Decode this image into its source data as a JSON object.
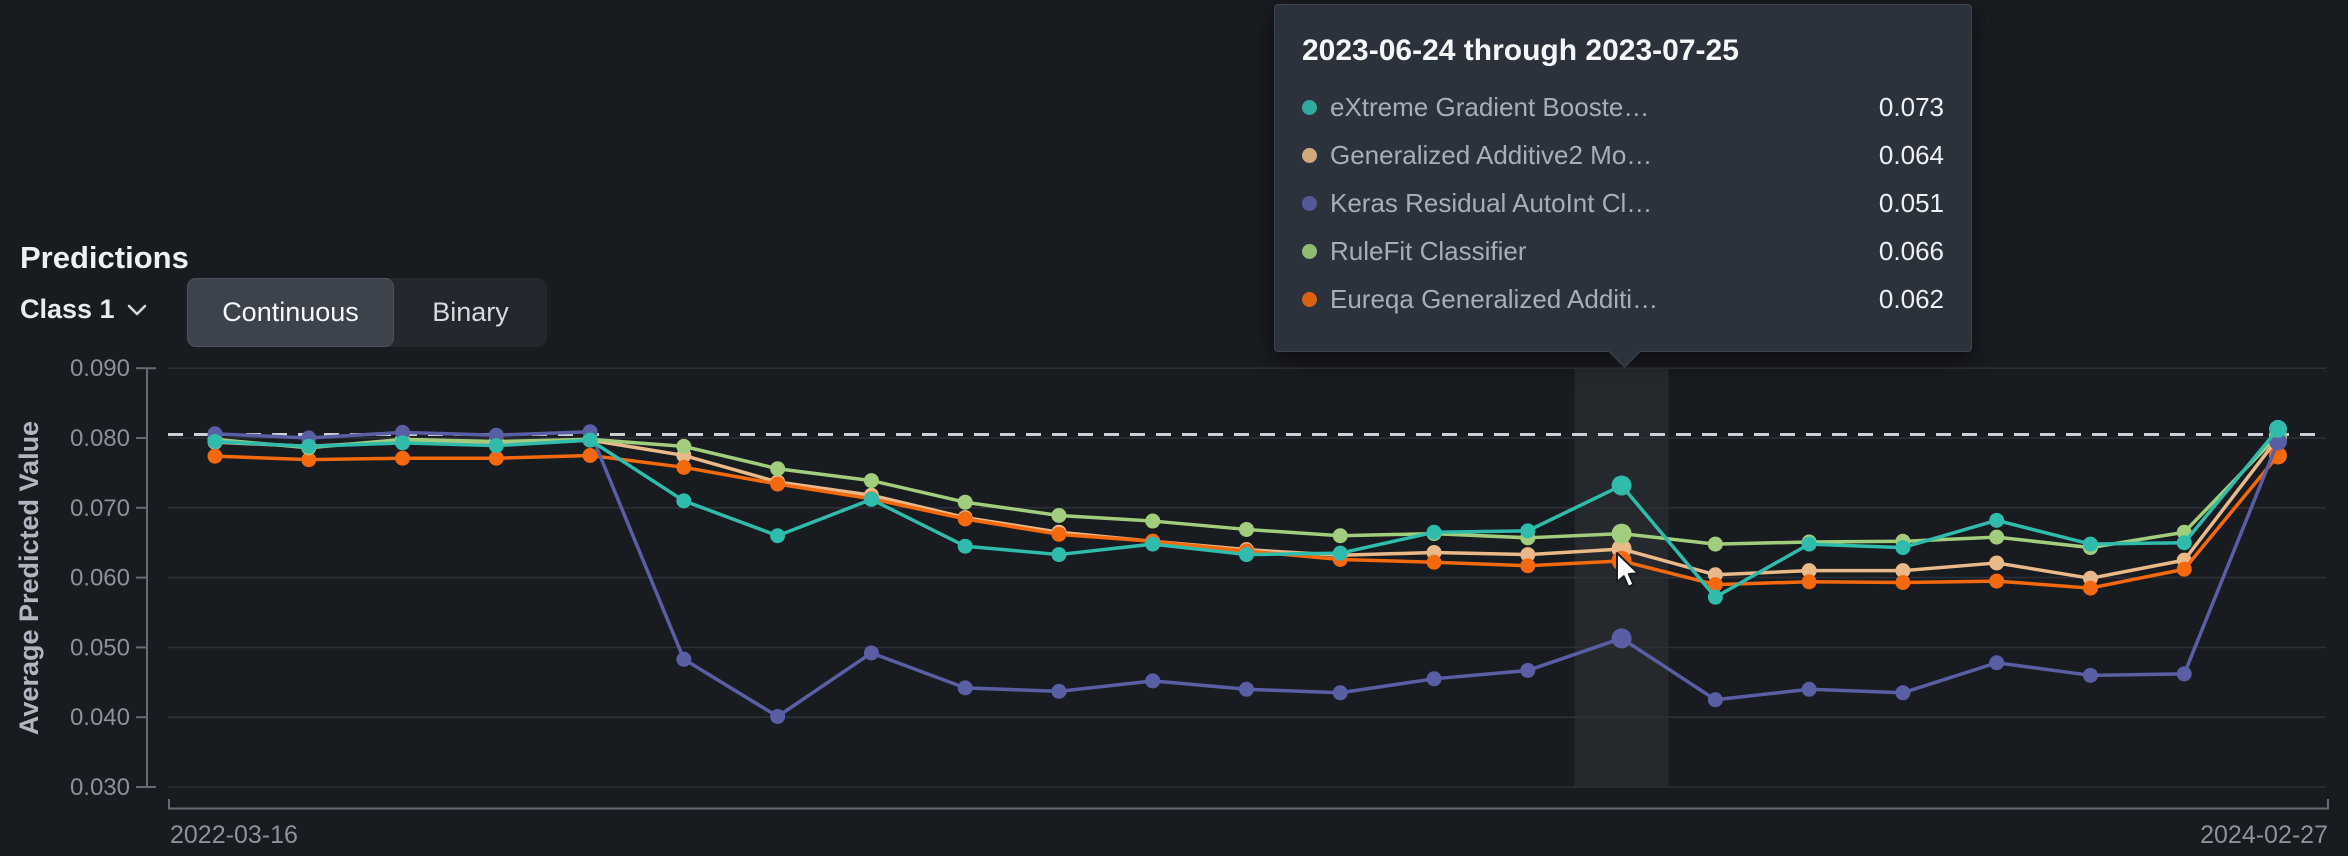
{
  "page": {
    "background": "#181b20"
  },
  "header": {
    "title": "Predictions",
    "class_selector": {
      "label": "Class 1",
      "icon": "chevron-down"
    },
    "toggle": {
      "options": [
        "Continuous",
        "Binary"
      ],
      "selected": "Continuous"
    }
  },
  "tooltip": {
    "title": "2023-06-24 through 2023-07-25",
    "rows": [
      {
        "name": "eXtreme Gradient Booste…",
        "value": "0.073",
        "color": "#2fbcac"
      },
      {
        "name": "Generalized Additive2 Mo…",
        "value": "0.064",
        "color": "#e9b989"
      },
      {
        "name": "Keras Residual AutoInt Cl…",
        "value": "0.051",
        "color": "#5a5fa5"
      },
      {
        "name": "RuleFit Classifier",
        "value": "0.066",
        "color": "#a2cd7d"
      },
      {
        "name": "Eureqa Generalized Additi…",
        "value": "0.062",
        "color": "#f4690e"
      }
    ]
  },
  "chart_data": {
    "type": "line",
    "title": "",
    "xlabel": "",
    "ylabel": "Average Predicted Value",
    "x_start_label": "2022-03-16",
    "x_end_label": "2024-02-27",
    "y_ticks": [
      "0.090",
      "0.080",
      "0.070",
      "0.060",
      "0.050",
      "0.040",
      "0.030"
    ],
    "ylim": [
      0.03,
      0.09
    ],
    "grid": true,
    "threshold_value": 0.0805,
    "hover_bin_index": 15,
    "hover_bin_label": "2023-06-24 through 2023-07-25",
    "bins": 23,
    "series": [
      {
        "name": "eXtreme Gradient Booste…",
        "color": "#2fbcac",
        "values": [
          0.0795,
          0.0788,
          0.0793,
          0.0789,
          0.0797,
          0.071,
          0.066,
          0.0712,
          0.0645,
          0.0633,
          0.0648,
          0.0633,
          0.0635,
          0.0665,
          0.0667,
          0.0732,
          0.0572,
          0.0648,
          0.0643,
          0.0682,
          0.0648,
          0.065,
          0.0813
        ]
      },
      {
        "name": "Generalized Additive2 Mo…",
        "color": "#e9b989",
        "values": [
          0.0794,
          0.0788,
          0.0795,
          0.079,
          0.0797,
          0.0775,
          0.0737,
          0.0718,
          0.0686,
          0.0665,
          0.0652,
          0.064,
          0.0632,
          0.0636,
          0.0633,
          0.0641,
          0.0604,
          0.061,
          0.061,
          0.0621,
          0.0599,
          0.0625,
          0.08
        ]
      },
      {
        "name": "Keras Residual AutoInt Cl…",
        "color": "#5a5fa5",
        "values": [
          0.0806,
          0.08,
          0.0808,
          0.0804,
          0.0809,
          0.0483,
          0.0401,
          0.0492,
          0.0442,
          0.0437,
          0.0452,
          0.044,
          0.0435,
          0.0455,
          0.0467,
          0.0513,
          0.0425,
          0.044,
          0.0435,
          0.0478,
          0.046,
          0.0462,
          0.0795
        ]
      },
      {
        "name": "RuleFit Classifier",
        "color": "#a2cd7d",
        "values": [
          0.0798,
          0.0786,
          0.0798,
          0.0795,
          0.0798,
          0.0788,
          0.0756,
          0.0739,
          0.0708,
          0.0689,
          0.0681,
          0.0669,
          0.066,
          0.0663,
          0.0657,
          0.0663,
          0.0648,
          0.0651,
          0.0652,
          0.0658,
          0.0643,
          0.0665,
          0.0804
        ]
      },
      {
        "name": "Eureqa Generalized Additi…",
        "color": "#f4690e",
        "values": [
          0.0774,
          0.0769,
          0.0771,
          0.0771,
          0.0775,
          0.0758,
          0.0734,
          0.0713,
          0.0684,
          0.0662,
          0.0652,
          0.0638,
          0.0626,
          0.0622,
          0.0617,
          0.0624,
          0.059,
          0.0594,
          0.0593,
          0.0595,
          0.0585,
          0.0612,
          0.0775
        ]
      }
    ],
    "colors": {
      "grid": "#2c3137",
      "axis": "#656c76",
      "tick_text": "#8c929b",
      "axis_title_text": "#b0b6bf",
      "threshold": "#ccd1d8",
      "hover_band": "rgba(255,255,255,0.06)"
    }
  }
}
